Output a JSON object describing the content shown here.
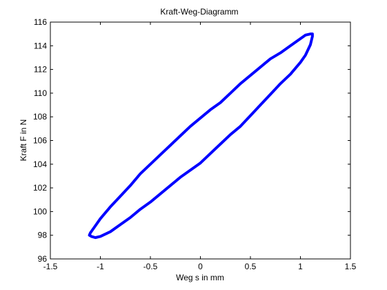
{
  "chart_data": {
    "type": "line",
    "title": "Kraft-Weg-Diagramm",
    "xlabel": "Weg s in mm",
    "ylabel": "Kraft F in N",
    "xlim": [
      -1.5,
      1.5
    ],
    "ylim": [
      96,
      116
    ],
    "xticks": [
      -1.5,
      -1,
      -0.5,
      0,
      0.5,
      1,
      1.5
    ],
    "yticks": [
      96,
      98,
      100,
      102,
      104,
      106,
      108,
      110,
      112,
      114,
      116
    ],
    "xtick_labels": [
      "-1.5",
      "-1",
      "-0.5",
      "0",
      "0.5",
      "1",
      "1.5"
    ],
    "ytick_labels": [
      "96",
      "98",
      "100",
      "102",
      "104",
      "106",
      "108",
      "110",
      "112",
      "114",
      "116"
    ],
    "grid": false,
    "line_color": "#0000ff",
    "series": [
      {
        "x": [
          -1.09,
          -1.05,
          -1.0,
          -0.9,
          -0.8,
          -0.7,
          -0.6,
          -0.5,
          -0.4,
          -0.3,
          -0.2,
          -0.1,
          0.0,
          0.1,
          0.2,
          0.3,
          0.4,
          0.5,
          0.6,
          0.7,
          0.8,
          0.9,
          1.0,
          1.05,
          1.1,
          1.12,
          1.12,
          1.1,
          1.05,
          1.0,
          0.9,
          0.8,
          0.7,
          0.6,
          0.5,
          0.4,
          0.3,
          0.2,
          0.1,
          0.0,
          -0.1,
          -0.2,
          -0.3,
          -0.4,
          -0.5,
          -0.6,
          -0.7,
          -0.8,
          -0.9,
          -1.0,
          -1.05,
          -1.1,
          -1.11,
          -1.09
        ],
        "y": [
          97.9,
          97.8,
          97.9,
          98.3,
          98.9,
          99.5,
          100.2,
          100.8,
          101.5,
          102.2,
          102.9,
          103.5,
          104.1,
          104.9,
          105.7,
          106.5,
          107.2,
          108.1,
          109.0,
          109.9,
          110.8,
          111.6,
          112.6,
          113.2,
          114.1,
          114.8,
          115.0,
          115.0,
          114.9,
          114.6,
          114.0,
          113.4,
          112.9,
          112.2,
          111.5,
          110.8,
          110.0,
          109.2,
          108.6,
          107.9,
          107.2,
          106.4,
          105.6,
          104.8,
          104.0,
          103.2,
          102.2,
          101.3,
          100.4,
          99.4,
          98.8,
          98.2,
          98.0,
          97.9
        ]
      }
    ]
  }
}
